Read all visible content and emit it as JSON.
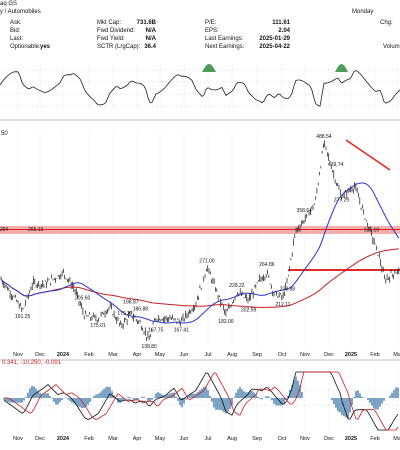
{
  "header": {
    "exchange_fragment": "aq GS",
    "industry": "y / Automobiles",
    "date_fragment": "Monday",
    "change_label": "Chg:",
    "volume_label": "Volum",
    "fields": [
      {
        "label": "Ask:",
        "value": ""
      },
      {
        "label": "Bid:",
        "value": ""
      },
      {
        "label": "Last:",
        "value": ""
      },
      {
        "label": "Optionable:",
        "value": "yes"
      },
      {
        "label": "Mkt Cap:",
        "value": "731.6B"
      },
      {
        "label": "Fwd Dividend:",
        "value": "N/A"
      },
      {
        "label": "Fwd Yield:",
        "value": "N/A"
      },
      {
        "label": "SCTR (LrgCap):",
        "value": "36.4"
      },
      {
        "label": "P/E:",
        "value": "111.61"
      },
      {
        "label": "EPS:",
        "value": "2.04"
      },
      {
        "label": "Last Earnings:",
        "value": "2025-01-29"
      },
      {
        "label": "Next Earnings:",
        "value": "2025-04-22"
      }
    ]
  },
  "macd_label": "0.341, -10.250, -0.091",
  "price_panel_label": "50",
  "colors": {
    "price_bar": "#111111",
    "ma_short": "#2a36c9",
    "ma_long": "#c62020",
    "resistance_band": "#e74c4c",
    "rsi_fill": "#2e8b3a",
    "histogram": "#5b8db8"
  },
  "chart_data": {
    "type": "line",
    "x_months": [
      "Nov",
      "Dec",
      "2024",
      "Feb",
      "Mar",
      "Apr",
      "May",
      "Jun",
      "Jul",
      "Aug",
      "Sep",
      "Oct",
      "Nov",
      "Dec",
      "2025",
      "Feb",
      "Mar"
    ],
    "price_annotations": [
      {
        "value": "191.25",
        "date": "2023-11-01"
      },
      {
        "value": "205.60",
        "date": "2024-01-22"
      },
      {
        "value": "175.01",
        "date": "2024-02-12"
      },
      {
        "value": "179.22",
        "date": "2024-03-20"
      },
      {
        "value": "198.87",
        "date": "2024-03-28"
      },
      {
        "value": "186.88",
        "date": "2024-04-10"
      },
      {
        "value": "138.80",
        "date": "2024-04-22"
      },
      {
        "value": "167.75",
        "date": "2024-05-01"
      },
      {
        "value": "167.41",
        "date": "2024-06-05"
      },
      {
        "value": "271.00",
        "date": "2024-07-10"
      },
      {
        "value": "182.00",
        "date": "2024-08-05"
      },
      {
        "value": "228.22",
        "date": "2024-08-20"
      },
      {
        "value": "202.59",
        "date": "2024-09-05"
      },
      {
        "value": "264.86",
        "date": "2024-09-30"
      },
      {
        "value": "212.11",
        "date": "2024-10-22"
      },
      {
        "value": "238.88",
        "date": "2024-10-28"
      },
      {
        "value": "358.64",
        "date": "2024-11-20"
      },
      {
        "value": "488.54",
        "date": "2024-12-17"
      },
      {
        "value": "439.74",
        "date": "2025-01-02"
      },
      {
        "value": "377.29",
        "date": "2025-01-10"
      },
      {
        "value": "325.10",
        "date": "2025-02-20"
      }
    ],
    "resistance_left_labels": [
      "264",
      "265.13"
    ],
    "resistance_level": 265,
    "support_level": 215,
    "ylim": [
      130,
      500
    ]
  }
}
